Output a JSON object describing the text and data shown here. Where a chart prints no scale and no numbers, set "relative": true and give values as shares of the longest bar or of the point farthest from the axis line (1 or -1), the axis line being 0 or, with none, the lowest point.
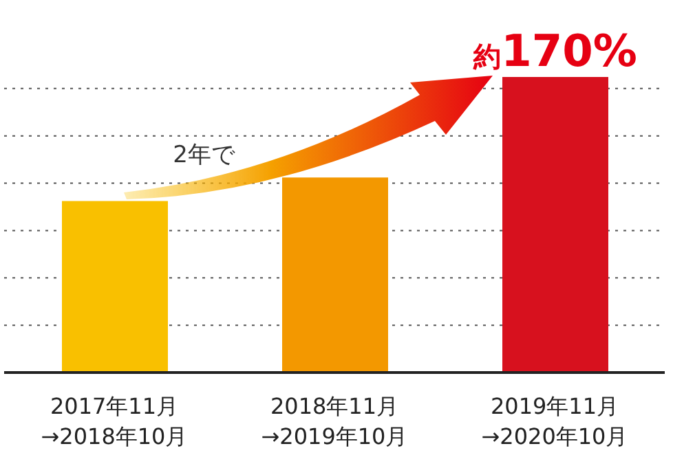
{
  "chart_data": {
    "type": "bar",
    "relative": true,
    "grid": "y",
    "categories": [
      "2017年11月\n→2018年10月",
      "2018年11月\n→2019年10月",
      "2019年11月\n→2020年10月"
    ],
    "values": [
      0.58,
      0.66,
      1
    ],
    "colors": [
      "#f9c000",
      "#f39800",
      "#d7111e"
    ],
    "annotations": [
      {
        "text": "約170%",
        "x": "2019年11月\n→2020年10月",
        "y": 1
      },
      "2年で"
    ]
  }
}
